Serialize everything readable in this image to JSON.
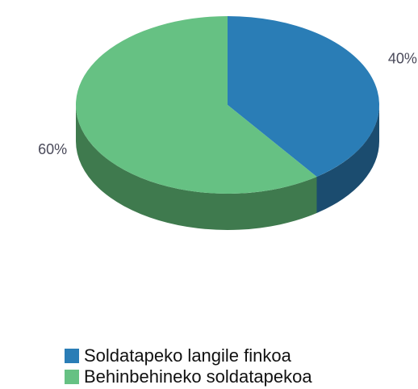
{
  "chart_data": {
    "type": "pie",
    "categories": [
      "Soldatapeko langile finkoa",
      "Behinbehineko soldatapekoa"
    ],
    "values": [
      40,
      60
    ],
    "value_labels": [
      "40%",
      "60%"
    ],
    "colors": [
      "#2a7db6",
      "#66c183"
    ],
    "side_colors": [
      "#1b4c6f",
      "#3f7a4e"
    ],
    "legend": "bottom"
  }
}
